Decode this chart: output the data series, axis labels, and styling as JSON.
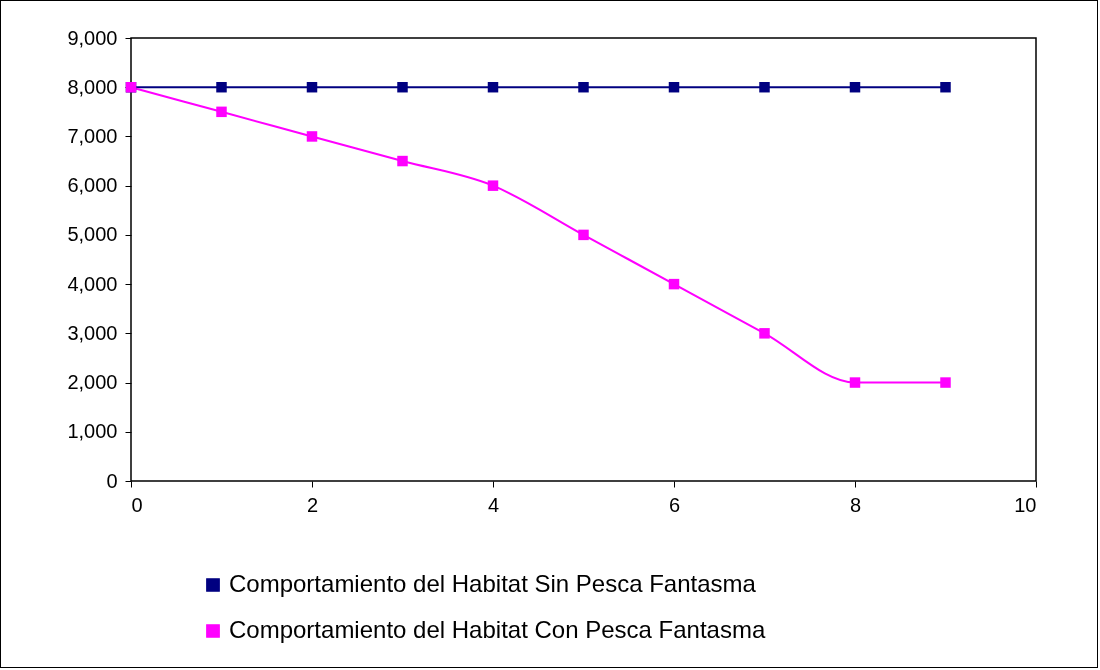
{
  "chart_data": {
    "type": "line",
    "x": [
      0,
      1,
      2,
      3,
      4,
      5,
      6,
      7,
      8,
      9
    ],
    "series": [
      {
        "name": "Comportamiento del Habitat Sin Pesca Fantasma",
        "color": "#000080",
        "values": [
          8000,
          8000,
          8000,
          8000,
          8000,
          8000,
          8000,
          8000,
          8000,
          8000
        ]
      },
      {
        "name": "Comportamiento del Habitat Con Pesca Fantasma",
        "color": "#ff00ff",
        "values": [
          8000,
          7500,
          7000,
          6500,
          6000,
          5000,
          4000,
          3000,
          2000,
          2000
        ]
      }
    ],
    "xlim": [
      0,
      10
    ],
    "xticks": [
      0,
      2,
      4,
      6,
      8,
      10
    ],
    "ylim": [
      0,
      9000
    ],
    "yticks": [
      {
        "value": 0,
        "label": "0"
      },
      {
        "value": 1000,
        "label": "1,000"
      },
      {
        "value": 2000,
        "label": "2,000"
      },
      {
        "value": 3000,
        "label": "3,000"
      },
      {
        "value": 4000,
        "label": "4,000"
      },
      {
        "value": 5000,
        "label": "5,000"
      },
      {
        "value": 6000,
        "label": "6,000"
      },
      {
        "value": 7000,
        "label": "7,000"
      },
      {
        "value": 8000,
        "label": "8,000"
      },
      {
        "value": 9000,
        "label": "9,000"
      }
    ],
    "grid": false,
    "legend": "bottom",
    "marker": "square",
    "line_style": "solid"
  }
}
